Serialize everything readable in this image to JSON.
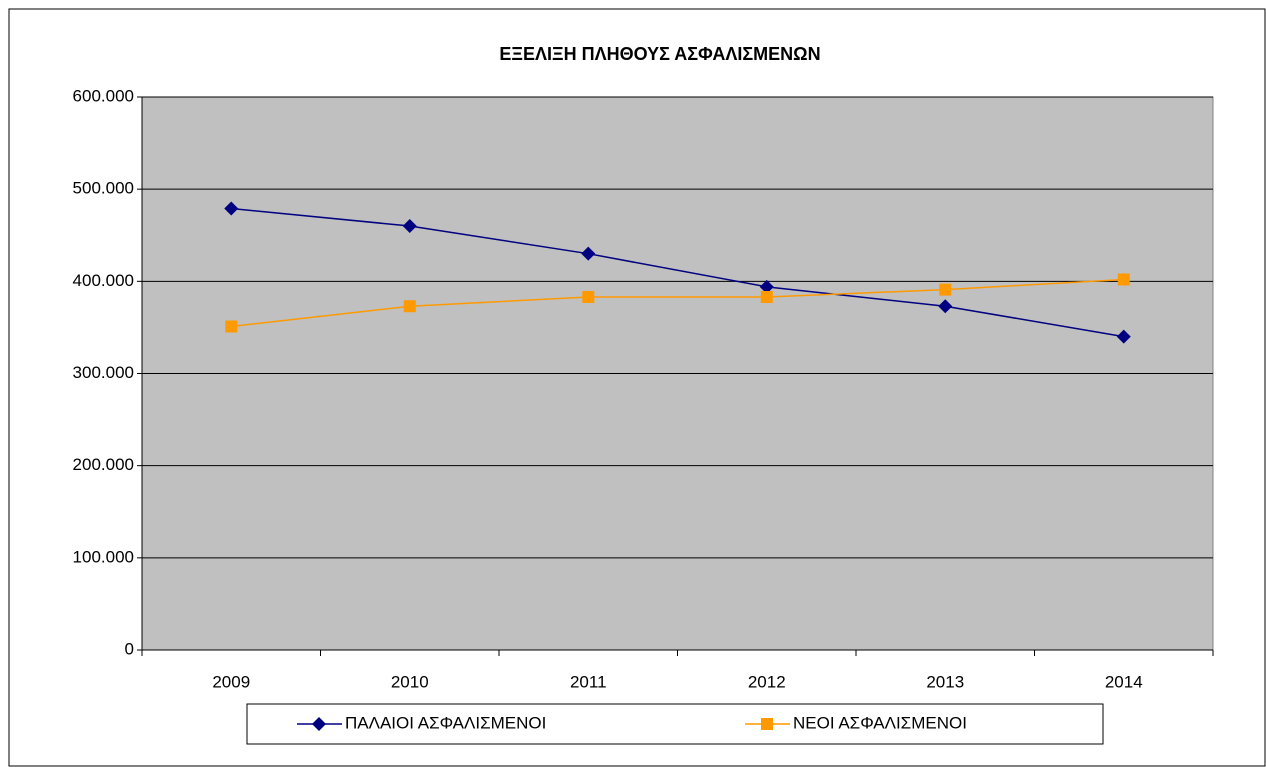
{
  "chart_data": {
    "type": "line",
    "title": "ΕΞΕΛΙΞΗ ΠΛΗΘΟΥΣ ΑΣΦΑΛΙΣΜΕΝΩΝ",
    "categories": [
      "2009",
      "2010",
      "2011",
      "2012",
      "2013",
      "2014"
    ],
    "series": [
      {
        "name": "ΠΑΛΑΙΟΙ ΑΣΦΑΛΙΣΜΕΝΟΙ",
        "color": "#000080",
        "marker": "diamond",
        "values": [
          479000,
          460000,
          430000,
          394000,
          373000,
          340000
        ]
      },
      {
        "name": "ΝΕΟΙ ΑΣΦΑΛΙΣΜΕΝΟΙ",
        "color": "#FF9900",
        "marker": "square",
        "values": [
          351000,
          373000,
          383000,
          383000,
          391000,
          402000
        ]
      }
    ],
    "ylim": [
      0,
      600000
    ],
    "yticks": [
      0,
      {
        "value": 100000,
        "label": "100.000"
      },
      {
        "value": 200000,
        "label": "200.000"
      },
      {
        "value": 300000,
        "label": "300.000"
      },
      {
        "value": 400000,
        "label": "400.000"
      },
      {
        "value": 500000,
        "label": "500.000"
      },
      {
        "value": 600000,
        "label": "600.000"
      }
    ],
    "grid": true,
    "legend": "bottom",
    "plot_background": "#C0C0C0"
  }
}
